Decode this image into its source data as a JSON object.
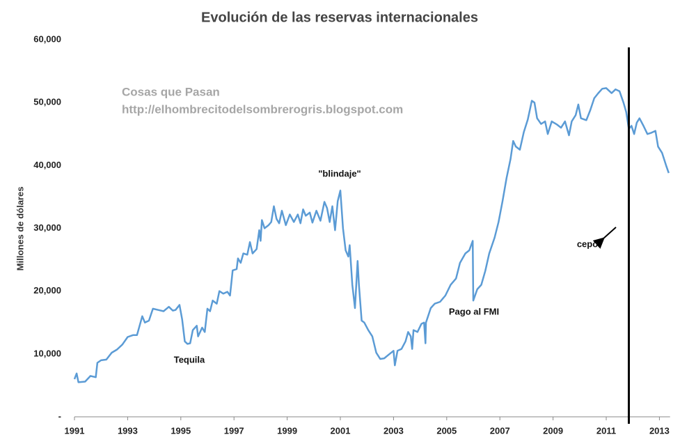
{
  "chart_data": {
    "type": "line",
    "title": "Evolución de las reservas internacionales",
    "y_label": "Millones de dólares",
    "color": "#5b9bd5",
    "xlim": [
      1991,
      2013.4
    ],
    "xticks": [
      1991,
      1993,
      1995,
      1997,
      1999,
      2001,
      2003,
      2005,
      2007,
      2009,
      2011,
      2013
    ],
    "ylim": [
      0,
      60000
    ],
    "yticks": [
      {
        "value": 0,
        "label": "-"
      },
      {
        "value": 10000,
        "label": "10,000"
      },
      {
        "value": 20000,
        "label": "20,000"
      },
      {
        "value": 30000,
        "label": "30,000"
      },
      {
        "value": 40000,
        "label": "40,000"
      },
      {
        "value": 50000,
        "label": "50,000"
      },
      {
        "value": 60000,
        "label": "60,000"
      }
    ],
    "grid": false,
    "vline": 2011.85,
    "watermark": [
      "Cosas que Pasan",
      "http://elhombrecitodelsombrerogris.blogspot.com"
    ],
    "annotations": [
      "\"blindaje\"",
      "Tequila",
      "Pago al FMI",
      "cepo"
    ],
    "x": [
      1991.0,
      1991.08,
      1991.15,
      1991.4,
      1991.6,
      1991.8,
      1991.86,
      1992.0,
      1992.2,
      1992.4,
      1992.6,
      1992.8,
      1993.0,
      1993.2,
      1993.35,
      1993.55,
      1993.65,
      1993.8,
      1993.95,
      1994.15,
      1994.35,
      1994.55,
      1994.7,
      1994.8,
      1994.95,
      1995.05,
      1995.15,
      1995.25,
      1995.35,
      1995.45,
      1995.6,
      1995.65,
      1995.8,
      1995.9,
      1996.0,
      1996.1,
      1996.2,
      1996.35,
      1996.45,
      1996.6,
      1996.75,
      1996.85,
      1996.95,
      1997.1,
      1997.15,
      1997.25,
      1997.35,
      1997.5,
      1997.6,
      1997.7,
      1997.85,
      1997.95,
      1998.0,
      1998.05,
      1998.15,
      1998.3,
      1998.4,
      1998.5,
      1998.6,
      1998.7,
      1998.8,
      1998.95,
      1999.1,
      1999.25,
      1999.4,
      1999.5,
      1999.6,
      1999.7,
      1999.85,
      1999.95,
      2000.1,
      2000.25,
      2000.4,
      2000.5,
      2000.6,
      2000.7,
      2000.8,
      2000.9,
      2001.0,
      2001.1,
      2001.2,
      2001.3,
      2001.35,
      2001.45,
      2001.55,
      2001.65,
      2001.7,
      2001.8,
      2001.9,
      2002.05,
      2002.2,
      2002.35,
      2002.5,
      2002.65,
      2002.85,
      2003.0,
      2003.05,
      2003.15,
      2003.3,
      2003.45,
      2003.55,
      2003.65,
      2003.7,
      2003.75,
      2003.9,
      2004.05,
      2004.15,
      2004.2,
      2004.22,
      2004.4,
      2004.55,
      2004.75,
      2004.95,
      2005.15,
      2005.35,
      2005.5,
      2005.7,
      2005.85,
      2005.98,
      2006.0,
      2006.15,
      2006.3,
      2006.45,
      2006.6,
      2006.8,
      2006.95,
      2007.1,
      2007.25,
      2007.4,
      2007.5,
      2007.6,
      2007.75,
      2007.9,
      2008.05,
      2008.2,
      2008.3,
      2008.4,
      2008.55,
      2008.7,
      2008.8,
      2008.95,
      2009.15,
      2009.3,
      2009.45,
      2009.6,
      2009.7,
      2009.85,
      2009.95,
      2010.05,
      2010.25,
      2010.4,
      2010.55,
      2010.7,
      2010.85,
      2011.0,
      2011.2,
      2011.35,
      2011.5,
      2011.65,
      2011.75,
      2011.85,
      2011.95,
      2012.05,
      2012.15,
      2012.25,
      2012.4,
      2012.55,
      2012.7,
      2012.85,
      2012.95,
      2013.1,
      2013.25,
      2013.35
    ],
    "values": [
      6000,
      6900,
      5500,
      5600,
      6500,
      6300,
      8600,
      9000,
      9100,
      10200,
      10700,
      11500,
      12700,
      13000,
      13000,
      16000,
      15000,
      15300,
      17200,
      17000,
      16800,
      17500,
      16900,
      17000,
      17800,
      15500,
      12000,
      11600,
      11700,
      13800,
      14500,
      12800,
      14200,
      13500,
      17200,
      16800,
      18500,
      18000,
      20000,
      19600,
      19900,
      19300,
      23300,
      23500,
      25200,
      24500,
      26000,
      25800,
      27800,
      26000,
      26700,
      29700,
      28000,
      31300,
      30000,
      30500,
      31000,
      33500,
      31500,
      30800,
      32800,
      30500,
      32200,
      31000,
      32200,
      30800,
      33000,
      32000,
      32500,
      30900,
      32800,
      31200,
      34200,
      33200,
      31000,
      33500,
      29700,
      34300,
      36000,
      30000,
      26500,
      25500,
      27300,
      21000,
      17300,
      24800,
      21000,
      15300,
      15000,
      13800,
      12800,
      10200,
      9200,
      9300,
      10000,
      10500,
      8200,
      10500,
      10800,
      12000,
      13500,
      12800,
      10800,
      13800,
      13500,
      14800,
      15000,
      11700,
      15000,
      17300,
      18000,
      18300,
      19300,
      21000,
      22000,
      24500,
      26000,
      26500,
      28000,
      18500,
      20300,
      21000,
      23200,
      26000,
      28500,
      31000,
      34300,
      38000,
      41000,
      43900,
      43000,
      42500,
      45300,
      47300,
      50300,
      50000,
      47500,
      46600,
      47000,
      45000,
      47000,
      46500,
      46000,
      47000,
      44800,
      47000,
      48000,
      49700,
      47500,
      47200,
      48800,
      50700,
      51500,
      52200,
      52300,
      51500,
      52100,
      51800,
      50000,
      48500,
      45800,
      46300,
      45000,
      46800,
      47500,
      46300,
      45000,
      45200,
      45500,
      43000,
      42000,
      40000,
      38800
    ]
  }
}
